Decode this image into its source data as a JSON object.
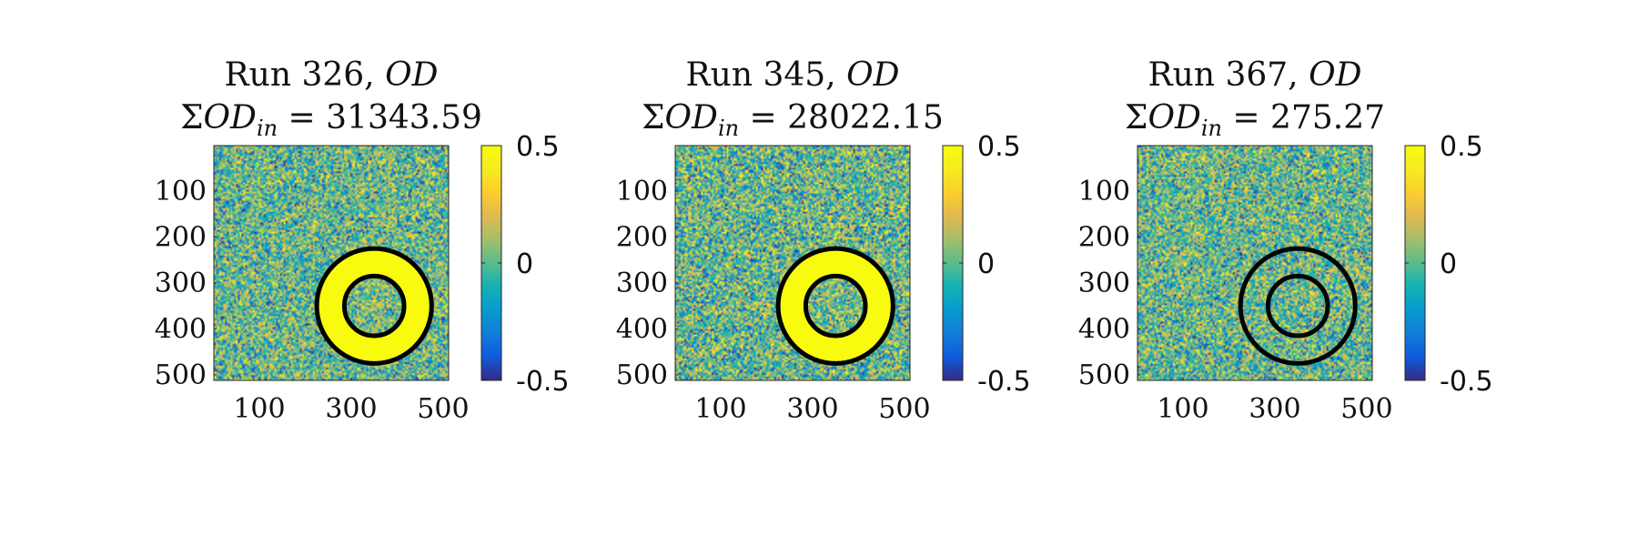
{
  "chart_data": [
    {
      "type": "heatmap",
      "title_line1": "Run 326,",
      "title_var": "OD",
      "title_line2_prefix": "ΣOD",
      "title_line2_sub": "in",
      "title_line2_value": "= 31343.59",
      "xticks": [
        100,
        300,
        500
      ],
      "yticks": [
        100,
        200,
        300,
        400,
        500
      ],
      "xlim": [
        1,
        512
      ],
      "ylim": [
        1,
        512
      ],
      "clim": [
        -0.5,
        0.5
      ],
      "colorbar_ticks": [
        "0.5",
        "0",
        "-0.5"
      ],
      "colormap": "parula",
      "rings": [
        {
          "cx": 350,
          "cy": 350,
          "r": 125
        },
        {
          "cx": 350,
          "cy": 350,
          "r": 65
        }
      ],
      "annulus_od": 0.5,
      "noise_sigma": 0.22,
      "seed": 11
    },
    {
      "type": "heatmap",
      "title_line1": "Run 345,",
      "title_var": "OD",
      "title_line2_prefix": "ΣOD",
      "title_line2_sub": "in",
      "title_line2_value": "= 28022.15",
      "xticks": [
        100,
        300,
        500
      ],
      "yticks": [
        100,
        200,
        300,
        400,
        500
      ],
      "xlim": [
        1,
        512
      ],
      "ylim": [
        1,
        512
      ],
      "clim": [
        -0.5,
        0.5
      ],
      "colorbar_ticks": [
        "0.5",
        "0",
        "-0.5"
      ],
      "colormap": "parula",
      "rings": [
        {
          "cx": 350,
          "cy": 350,
          "r": 125
        },
        {
          "cx": 350,
          "cy": 350,
          "r": 65
        }
      ],
      "annulus_od": 0.5,
      "noise_sigma": 0.24,
      "seed": 29
    },
    {
      "type": "heatmap",
      "title_line1": "Run 367,",
      "title_var": "OD",
      "title_line2_prefix": "ΣOD",
      "title_line2_sub": "in",
      "title_line2_value": "= 275.27",
      "xticks": [
        100,
        300,
        500
      ],
      "yticks": [
        100,
        200,
        300,
        400,
        500
      ],
      "xlim": [
        1,
        512
      ],
      "ylim": [
        1,
        512
      ],
      "clim": [
        -0.5,
        0.5
      ],
      "colorbar_ticks": [
        "0.5",
        "0",
        "-0.5"
      ],
      "colormap": "parula",
      "rings": [
        {
          "cx": 350,
          "cy": 350,
          "r": 125
        },
        {
          "cx": 350,
          "cy": 350,
          "r": 65
        }
      ],
      "annulus_od": 0.0,
      "noise_sigma": 0.22,
      "seed": 47
    }
  ]
}
